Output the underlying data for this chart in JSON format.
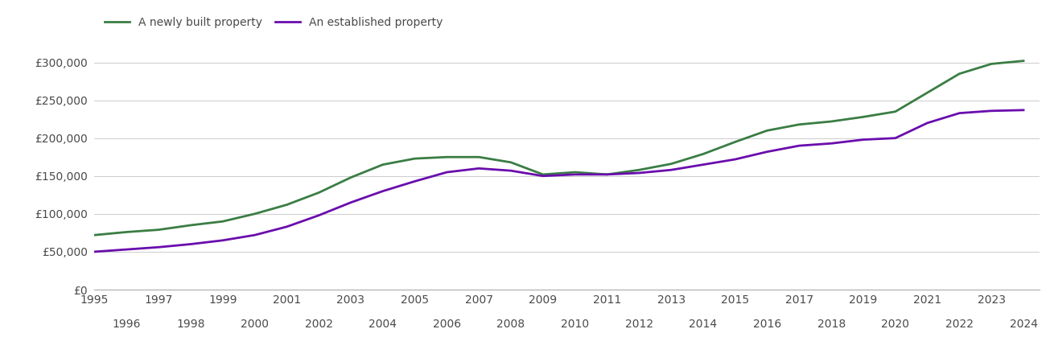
{
  "newly_built": {
    "years": [
      1995,
      1996,
      1997,
      1998,
      1999,
      2000,
      2001,
      2002,
      2003,
      2004,
      2005,
      2006,
      2007,
      2008,
      2009,
      2010,
      2011,
      2012,
      2013,
      2014,
      2015,
      2016,
      2017,
      2018,
      2019,
      2020,
      2021,
      2022,
      2023,
      2024
    ],
    "values": [
      72000,
      76000,
      79000,
      85000,
      90000,
      100000,
      112000,
      128000,
      148000,
      165000,
      173000,
      175000,
      175000,
      168000,
      152000,
      155000,
      152000,
      158000,
      166000,
      179000,
      195000,
      210000,
      218000,
      222000,
      228000,
      235000,
      260000,
      285000,
      298000,
      302000
    ]
  },
  "established": {
    "years": [
      1995,
      1996,
      1997,
      1998,
      1999,
      2000,
      2001,
      2002,
      2003,
      2004,
      2005,
      2006,
      2007,
      2008,
      2009,
      2010,
      2011,
      2012,
      2013,
      2014,
      2015,
      2016,
      2017,
      2018,
      2019,
      2020,
      2021,
      2022,
      2023,
      2024
    ],
    "values": [
      50000,
      53000,
      56000,
      60000,
      65000,
      72000,
      83000,
      98000,
      115000,
      130000,
      143000,
      155000,
      160000,
      157000,
      150000,
      152000,
      152000,
      154000,
      158000,
      165000,
      172000,
      182000,
      190000,
      193000,
      198000,
      200000,
      220000,
      233000,
      236000,
      237000
    ]
  },
  "newly_color": "#3a7d44",
  "established_color": "#6a0dad",
  "legend_newly": "A newly built property",
  "legend_established": "An established property",
  "ylim": [
    0,
    325000
  ],
  "yticks": [
    0,
    50000,
    100000,
    150000,
    200000,
    250000,
    300000
  ],
  "xlim_left": 1995,
  "xlim_right": 2024.5,
  "background_color": "#ffffff",
  "grid_color": "#cccccc",
  "text_color": "#4a4a4a",
  "tick_fontsize": 10,
  "legend_fontsize": 10
}
